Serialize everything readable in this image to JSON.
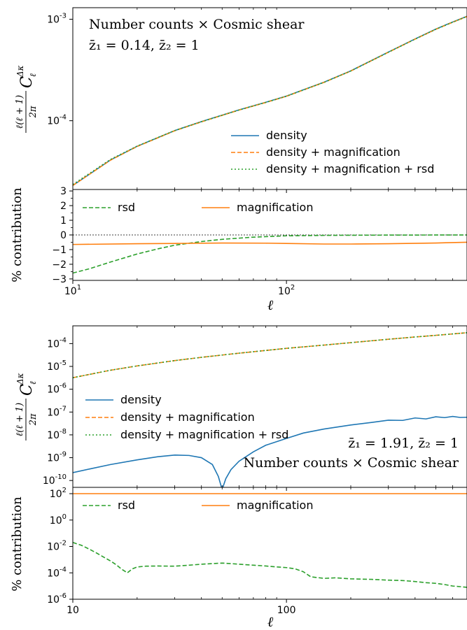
{
  "colors": {
    "density": "#1f77b4",
    "magnification": "#ff7f0e",
    "rsd": "#2ca02c",
    "axes": "#000000"
  },
  "chart_data": [
    {
      "panel": "top-main",
      "type": "line",
      "scale": "log-log",
      "xlim": [
        10,
        700
      ],
      "ylim": [
        2.1e-05,
        0.0013
      ],
      "annotation_lines": [
        "Number counts × Cosmic shear",
        "z̄₁ = 0.14,  z̄₂ = 1"
      ],
      "ylabel_parts": {
        "frac_num": "ℓ(ℓ + 1)",
        "frac_den": "2π",
        "symbol": "C",
        "sub": "ℓ",
        "sup": "Δκ"
      },
      "yticks": [
        {
          "value": 0.0001,
          "label": "10",
          "exp": "-4"
        },
        {
          "value": 0.001,
          "label": "10",
          "exp": "-3"
        }
      ],
      "legend_position": "lower-right",
      "series": [
        {
          "name": "density",
          "color": "#1f77b4",
          "style": "solid",
          "x": [
            10,
            15,
            20,
            30,
            40,
            60,
            80,
            100,
            150,
            200,
            300,
            400,
            500,
            600,
            700
          ],
          "y": [
            2.3e-05,
            4.1e-05,
            5.6e-05,
            8e-05,
            9.8e-05,
            0.000128,
            0.000152,
            0.000175,
            0.00024,
            0.00031,
            0.000475,
            0.00064,
            0.0008,
            0.00094,
            0.00107
          ]
        },
        {
          "name": "density + magnification",
          "color": "#ff7f0e",
          "style": "dashed",
          "x": [
            10,
            15,
            20,
            30,
            40,
            60,
            80,
            100,
            150,
            200,
            300,
            400,
            500,
            600,
            700
          ],
          "y": [
            2.3e-05,
            4.08e-05,
            5.57e-05,
            7.96e-05,
            9.75e-05,
            0.0001274,
            0.0001513,
            0.0001742,
            0.000239,
            0.000309,
            0.000473,
            0.000637,
            0.000796,
            0.000935,
            0.001065
          ]
        },
        {
          "name": "density + magnification + rsd",
          "color": "#2ca02c",
          "style": "dotted",
          "x": [
            10,
            15,
            20,
            30,
            40,
            60,
            80,
            100,
            150,
            200,
            300,
            400,
            500,
            600,
            700
          ],
          "y": [
            2.35e-05,
            4.15e-05,
            5.62e-05,
            8e-05,
            9.77e-05,
            0.0001275,
            0.0001514,
            0.0001743,
            0.000239,
            0.000309,
            0.000473,
            0.000637,
            0.000796,
            0.000935,
            0.001065
          ]
        }
      ]
    },
    {
      "panel": "top-ratio",
      "type": "line",
      "scale": "log-linear",
      "xlim": [
        10,
        700
      ],
      "ylim": [
        -3.1,
        3.1
      ],
      "ylabel": "% contribution",
      "xlabel": "ℓ",
      "yticks": [
        -3,
        -2,
        -1,
        0,
        1,
        2,
        3
      ],
      "xticks": [
        {
          "value": 10,
          "label": "10",
          "exp": "1"
        },
        {
          "value": 100,
          "label": "10",
          "exp": "2"
        }
      ],
      "legend_position": "top-left",
      "zero_line": true,
      "series": [
        {
          "name": "rsd",
          "color": "#2ca02c",
          "style": "dashed",
          "x": [
            10,
            12,
            15,
            20,
            25,
            30,
            40,
            50,
            70,
            100,
            150,
            200,
            300,
            500,
            700
          ],
          "y": [
            -2.6,
            -2.3,
            -1.85,
            -1.3,
            -0.95,
            -0.7,
            -0.45,
            -0.3,
            -0.15,
            -0.06,
            -0.03,
            -0.02,
            -0.01,
            -0.005,
            -0.005
          ]
        },
        {
          "name": "magnification",
          "color": "#ff7f0e",
          "style": "solid",
          "x": [
            10,
            20,
            30,
            50,
            80,
            100,
            150,
            200,
            300,
            500,
            700
          ],
          "y": [
            -0.65,
            -0.6,
            -0.58,
            -0.55,
            -0.56,
            -0.58,
            -0.62,
            -0.62,
            -0.6,
            -0.55,
            -0.5
          ]
        }
      ]
    },
    {
      "panel": "bottom-main",
      "type": "line",
      "scale": "log-log",
      "xlim": [
        10,
        700
      ],
      "ylim": [
        5e-11,
        0.0006
      ],
      "annotation_lines": [
        "z̄₁ = 1.91,  z̄₂ = 1",
        "Number counts × Cosmic shear"
      ],
      "ylabel_parts": {
        "frac_num": "ℓ(ℓ + 1)",
        "frac_den": "2π",
        "symbol": "C",
        "sub": "ℓ",
        "sup": "Δκ"
      },
      "yticks": [
        {
          "value": 1e-10,
          "label": "10",
          "exp": "-10"
        },
        {
          "value": 1e-09,
          "label": "10",
          "exp": "-9"
        },
        {
          "value": 1e-08,
          "label": "10",
          "exp": "-8"
        },
        {
          "value": 1e-07,
          "label": "10",
          "exp": "-7"
        },
        {
          "value": 1e-06,
          "label": "10",
          "exp": "-6"
        },
        {
          "value": 1e-05,
          "label": "10",
          "exp": "-5"
        },
        {
          "value": 0.0001,
          "label": "10",
          "exp": "-4"
        }
      ],
      "legend_position": "center-left",
      "series": [
        {
          "name": "density",
          "color": "#1f77b4",
          "style": "solid",
          "x": [
            10,
            12,
            15,
            20,
            25,
            30,
            35,
            40,
            45,
            48,
            50,
            52,
            55,
            60,
            70,
            80,
            100,
            120,
            150,
            200,
            250,
            300,
            350,
            400,
            450,
            500,
            550,
            600,
            650,
            700
          ],
          "y": [
            2.2e-10,
            3.2e-10,
            5e-10,
            8e-10,
            1.1e-09,
            1.3e-09,
            1.25e-09,
            1e-09,
            5e-10,
            1.5e-10,
            4e-11,
            1.2e-10,
            3e-10,
            7e-10,
            1.8e-09,
            3.5e-09,
            7e-09,
            1.2e-08,
            1.8e-08,
            2.7e-08,
            3.5e-08,
            4.4e-08,
            4.3e-08,
            5.5e-08,
            5e-08,
            6.2e-08,
            5.7e-08,
            6.4e-08,
            5.8e-08,
            5.9e-08
          ]
        },
        {
          "name": "density + magnification",
          "color": "#ff7f0e",
          "style": "dashed",
          "x": [
            10,
            15,
            20,
            30,
            40,
            60,
            80,
            100,
            150,
            200,
            300,
            400,
            500,
            600,
            700
          ],
          "y": [
            3.2e-06,
            6.8e-06,
            1.05e-05,
            1.8e-05,
            2.5e-05,
            3.8e-05,
            5e-05,
            6.2e-05,
            8.6e-05,
            0.00011,
            0.000155,
            0.000195,
            0.00023,
            0.000265,
            0.0003
          ]
        },
        {
          "name": "density + magnification + rsd",
          "color": "#2ca02c",
          "style": "dotted",
          "x": [
            10,
            15,
            20,
            30,
            40,
            60,
            80,
            100,
            150,
            200,
            300,
            400,
            500,
            600,
            700
          ],
          "y": [
            3.2e-06,
            6.8e-06,
            1.05e-05,
            1.8e-05,
            2.5e-05,
            3.8e-05,
            5e-05,
            6.2e-05,
            8.6e-05,
            0.00011,
            0.000155,
            0.000195,
            0.00023,
            0.000265,
            0.0003
          ]
        }
      ]
    },
    {
      "panel": "bottom-ratio",
      "type": "line",
      "scale": "log-log",
      "xlim": [
        10,
        700
      ],
      "ylim": [
        1e-06,
        300
      ],
      "ylabel": "% contribution",
      "xlabel": "ℓ",
      "yticks": [
        {
          "value": 1e-06,
          "label": "10",
          "exp": "-6"
        },
        {
          "value": 0.0001,
          "label": "10",
          "exp": "-4"
        },
        {
          "value": 0.01,
          "label": "10",
          "exp": "-2"
        },
        {
          "value": 1,
          "label": "10",
          "exp": "0"
        },
        {
          "value": 100,
          "label": "10",
          "exp": "2"
        }
      ],
      "xticks": [
        {
          "value": 10,
          "label": "10"
        },
        {
          "value": 100,
          "label": "100"
        }
      ],
      "legend_position": "top-left",
      "series": [
        {
          "name": "rsd",
          "color": "#2ca02c",
          "style": "dashed",
          "x": [
            10,
            11,
            12,
            13,
            14,
            15,
            16,
            17,
            18,
            19,
            20,
            22,
            25,
            30,
            35,
            40,
            45,
            50,
            55,
            60,
            70,
            80,
            90,
            100,
            110,
            120,
            130,
            150,
            170,
            200,
            250,
            300,
            350,
            400,
            450,
            500,
            550,
            600,
            650,
            700
          ],
          "y": [
            0.02,
            0.012,
            0.006,
            0.003,
            0.0015,
            0.0008,
            0.0004,
            0.00018,
            0.0001,
            0.0002,
            0.00028,
            0.00032,
            0.00033,
            0.00032,
            0.00038,
            0.00045,
            0.0005,
            0.00055,
            0.0005,
            0.00045,
            0.00038,
            0.00033,
            0.00028,
            0.00025,
            0.0002,
            0.00012,
            5e-05,
            3.8e-05,
            4.2e-05,
            3.5e-05,
            3.2e-05,
            2.8e-05,
            2.6e-05,
            2.2e-05,
            1.8e-05,
            1.6e-05,
            1.3e-05,
            1e-05,
            9e-06,
            8e-06
          ]
        },
        {
          "name": "magnification",
          "color": "#ff7f0e",
          "style": "solid",
          "x": [
            10,
            700
          ],
          "y": [
            100,
            100
          ]
        }
      ]
    }
  ]
}
